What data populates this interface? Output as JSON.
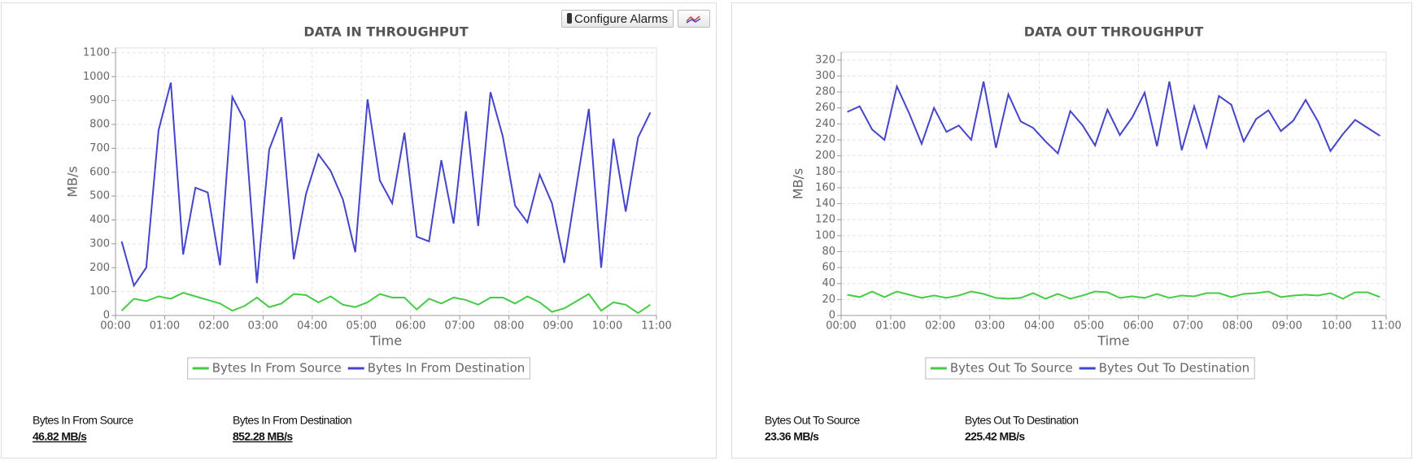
{
  "chart_data": [
    {
      "type": "line",
      "title": "DATA IN THROUGHPUT",
      "x_label": "Time",
      "y_label": "MB/s",
      "x": [
        0.125,
        0.375,
        0.625,
        0.875,
        1.125,
        1.375,
        1.625,
        1.875,
        2.125,
        2.375,
        2.625,
        2.875,
        3.125,
        3.375,
        3.625,
        3.875,
        4.125,
        4.375,
        4.625,
        4.875,
        5.125,
        5.375,
        5.625,
        5.875,
        6.125,
        6.375,
        6.625,
        6.875,
        7.125,
        7.375,
        7.625,
        7.875,
        8.125,
        8.375,
        8.625,
        8.875,
        9.125,
        9.375,
        9.625,
        9.875,
        10.125,
        10.375,
        10.625,
        10.875
      ],
      "series": [
        {
          "name": "Bytes In From Source",
          "color": "#44cc44",
          "values": [
            20,
            70,
            60,
            80,
            70,
            95,
            80,
            65,
            50,
            20,
            40,
            75,
            35,
            50,
            90,
            85,
            55,
            80,
            45,
            35,
            55,
            90,
            75,
            75,
            25,
            70,
            50,
            75,
            65,
            45,
            75,
            75,
            50,
            80,
            55,
            15,
            30,
            60,
            90,
            20,
            55,
            45,
            10,
            45
          ]
        },
        {
          "name": "Bytes In From Destination",
          "color": "#4444cc",
          "values": [
            310,
            125,
            200,
            775,
            975,
            255,
            535,
            515,
            210,
            915,
            815,
            135,
            695,
            830,
            235,
            510,
            675,
            605,
            485,
            265,
            905,
            565,
            470,
            765,
            330,
            310,
            650,
            385,
            855,
            375,
            935,
            750,
            460,
            390,
            590,
            470,
            220,
            545,
            865,
            200,
            740,
            435,
            745,
            850
          ]
        }
      ],
      "xlim": [
        0,
        11
      ],
      "ylim": [
        0,
        1120
      ],
      "xticks": [
        {
          "value": 0,
          "label": "00:00"
        },
        {
          "value": 1,
          "label": "01:00"
        },
        {
          "value": 2,
          "label": "02:00"
        },
        {
          "value": 3,
          "label": "03:00"
        },
        {
          "value": 4,
          "label": "04:00"
        },
        {
          "value": 5,
          "label": "05:00"
        },
        {
          "value": 6,
          "label": "06:00"
        },
        {
          "value": 7,
          "label": "07:00"
        },
        {
          "value": 8,
          "label": "08:00"
        },
        {
          "value": 9,
          "label": "09:00"
        },
        {
          "value": 10,
          "label": "10:00"
        },
        {
          "value": 11,
          "label": "11:00"
        }
      ],
      "yticks": [
        0,
        100,
        200,
        300,
        400,
        500,
        600,
        700,
        800,
        900,
        1000,
        1100
      ],
      "grid": true,
      "legend": "bottom"
    },
    {
      "type": "line",
      "title": "DATA OUT THROUGHPUT",
      "x_label": "Time",
      "y_label": "MB/s",
      "x": [
        0.125,
        0.375,
        0.625,
        0.875,
        1.125,
        1.375,
        1.625,
        1.875,
        2.125,
        2.375,
        2.625,
        2.875,
        3.125,
        3.375,
        3.625,
        3.875,
        4.125,
        4.375,
        4.625,
        4.875,
        5.125,
        5.375,
        5.625,
        5.875,
        6.125,
        6.375,
        6.625,
        6.875,
        7.125,
        7.375,
        7.625,
        7.875,
        8.125,
        8.375,
        8.625,
        8.875,
        9.125,
        9.375,
        9.625,
        9.875,
        10.125,
        10.375,
        10.625,
        10.875
      ],
      "series": [
        {
          "name": "Bytes Out To Source",
          "color": "#44cc44",
          "values": [
            26,
            23,
            30,
            23,
            30,
            26,
            22,
            25,
            22,
            25,
            30,
            27,
            22,
            21,
            22,
            28,
            21,
            27,
            21,
            25,
            30,
            29,
            22,
            24,
            22,
            27,
            22,
            25,
            24,
            28,
            28,
            23,
            27,
            28,
            30,
            23,
            25,
            26,
            25,
            28,
            21,
            29,
            29,
            23
          ]
        },
        {
          "name": "Bytes Out To Destination",
          "color": "#4444cc",
          "values": [
            255,
            262,
            233,
            220,
            287,
            253,
            215,
            260,
            230,
            238,
            220,
            293,
            210,
            277,
            243,
            235,
            218,
            203,
            256,
            238,
            213,
            258,
            226,
            248,
            279,
            212,
            293,
            207,
            262,
            211,
            275,
            264,
            218,
            246,
            257,
            231,
            244,
            270,
            243,
            206,
            227,
            245,
            235,
            225
          ]
        }
      ],
      "xlim": [
        0,
        11
      ],
      "ylim": [
        0,
        330
      ],
      "xticks": [
        {
          "value": 0,
          "label": "00:00"
        },
        {
          "value": 1,
          "label": "01:00"
        },
        {
          "value": 2,
          "label": "02:00"
        },
        {
          "value": 3,
          "label": "03:00"
        },
        {
          "value": 4,
          "label": "04:00"
        },
        {
          "value": 5,
          "label": "05:00"
        },
        {
          "value": 6,
          "label": "06:00"
        },
        {
          "value": 7,
          "label": "07:00"
        },
        {
          "value": 8,
          "label": "08:00"
        },
        {
          "value": 9,
          "label": "09:00"
        },
        {
          "value": 10,
          "label": "10:00"
        },
        {
          "value": 11,
          "label": "11:00"
        }
      ],
      "yticks": [
        0,
        20,
        40,
        60,
        80,
        100,
        120,
        140,
        160,
        180,
        200,
        220,
        240,
        260,
        280,
        300,
        320
      ],
      "grid": true,
      "legend": "bottom"
    }
  ],
  "toolbar": {
    "configure_alarms": "Configure Alarms"
  },
  "stats": [
    [
      {
        "label": "Bytes In From Source",
        "value": "46.82 MB/s"
      },
      {
        "label": "Bytes In From Destination",
        "value": "852.28 MB/s"
      }
    ],
    [
      {
        "label": "Bytes Out To Source",
        "value": "23.36 MB/s"
      },
      {
        "label": "Bytes Out To Destination",
        "value": "225.42 MB/s"
      }
    ]
  ]
}
